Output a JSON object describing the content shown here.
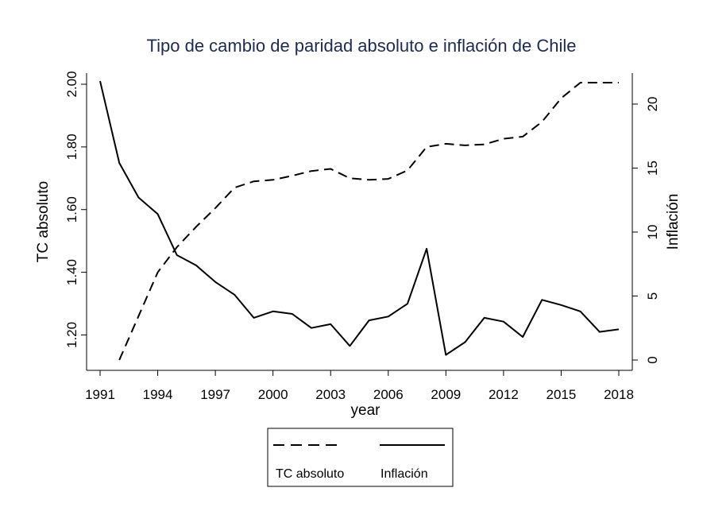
{
  "chart_data": {
    "type": "line",
    "title": "Tipo de cambio de paridad absoluto e inflación de Chile",
    "xlabel": "year",
    "ylabel_left": "TC absoluto",
    "ylabel_right": "Inflación",
    "x_ticks": [
      "1991",
      "1994",
      "1997",
      "2000",
      "2003",
      "2006",
      "2009",
      "2012",
      "2015",
      "2018"
    ],
    "y_left_ticks": [
      "1.20",
      "1.40",
      "1.60",
      "1.80",
      "2.00"
    ],
    "y_right_ticks": [
      "0",
      "5",
      "10",
      "15",
      "20"
    ],
    "xlim": [
      1991,
      2018
    ],
    "y_left_lim": [
      1.12,
      2.0
    ],
    "y_right_lim": [
      0,
      21.8
    ],
    "grid": false,
    "legend_position": "bottom",
    "series": [
      {
        "name": "TC absoluto",
        "axis": "left",
        "line_style": "dashed",
        "x": [
          1992,
          1993,
          1994,
          1995,
          1996,
          1997,
          1998,
          1999,
          2000,
          2001,
          2002,
          2003,
          2004,
          2005,
          2006,
          2007,
          2008,
          2009,
          2010,
          2011,
          2012,
          2013,
          2014,
          2015,
          2016,
          2017,
          2018
        ],
        "y": [
          1.12,
          1.26,
          1.4,
          1.48,
          1.545,
          1.605,
          1.67,
          1.69,
          1.695,
          1.708,
          1.723,
          1.73,
          1.7,
          1.695,
          1.698,
          1.725,
          1.8,
          1.81,
          1.805,
          1.808,
          1.826,
          1.833,
          1.88,
          1.955,
          2.005,
          2.005,
          2.005
        ]
      },
      {
        "name": "Inflación",
        "axis": "right",
        "line_style": "solid",
        "x": [
          1991,
          1992,
          1993,
          1994,
          1995,
          1996,
          1997,
          1998,
          1999,
          2000,
          2001,
          2002,
          2003,
          2004,
          2005,
          2006,
          2007,
          2008,
          2009,
          2010,
          2011,
          2012,
          2013,
          2014,
          2015,
          2016,
          2017,
          2018
        ],
        "y": [
          21.8,
          15.4,
          12.7,
          11.4,
          8.2,
          7.4,
          6.1,
          5.1,
          3.3,
          3.8,
          3.6,
          2.5,
          2.8,
          1.1,
          3.1,
          3.4,
          4.4,
          8.7,
          0.4,
          1.4,
          3.3,
          3.0,
          1.8,
          4.7,
          4.3,
          3.8,
          2.2,
          2.4
        ]
      }
    ]
  }
}
